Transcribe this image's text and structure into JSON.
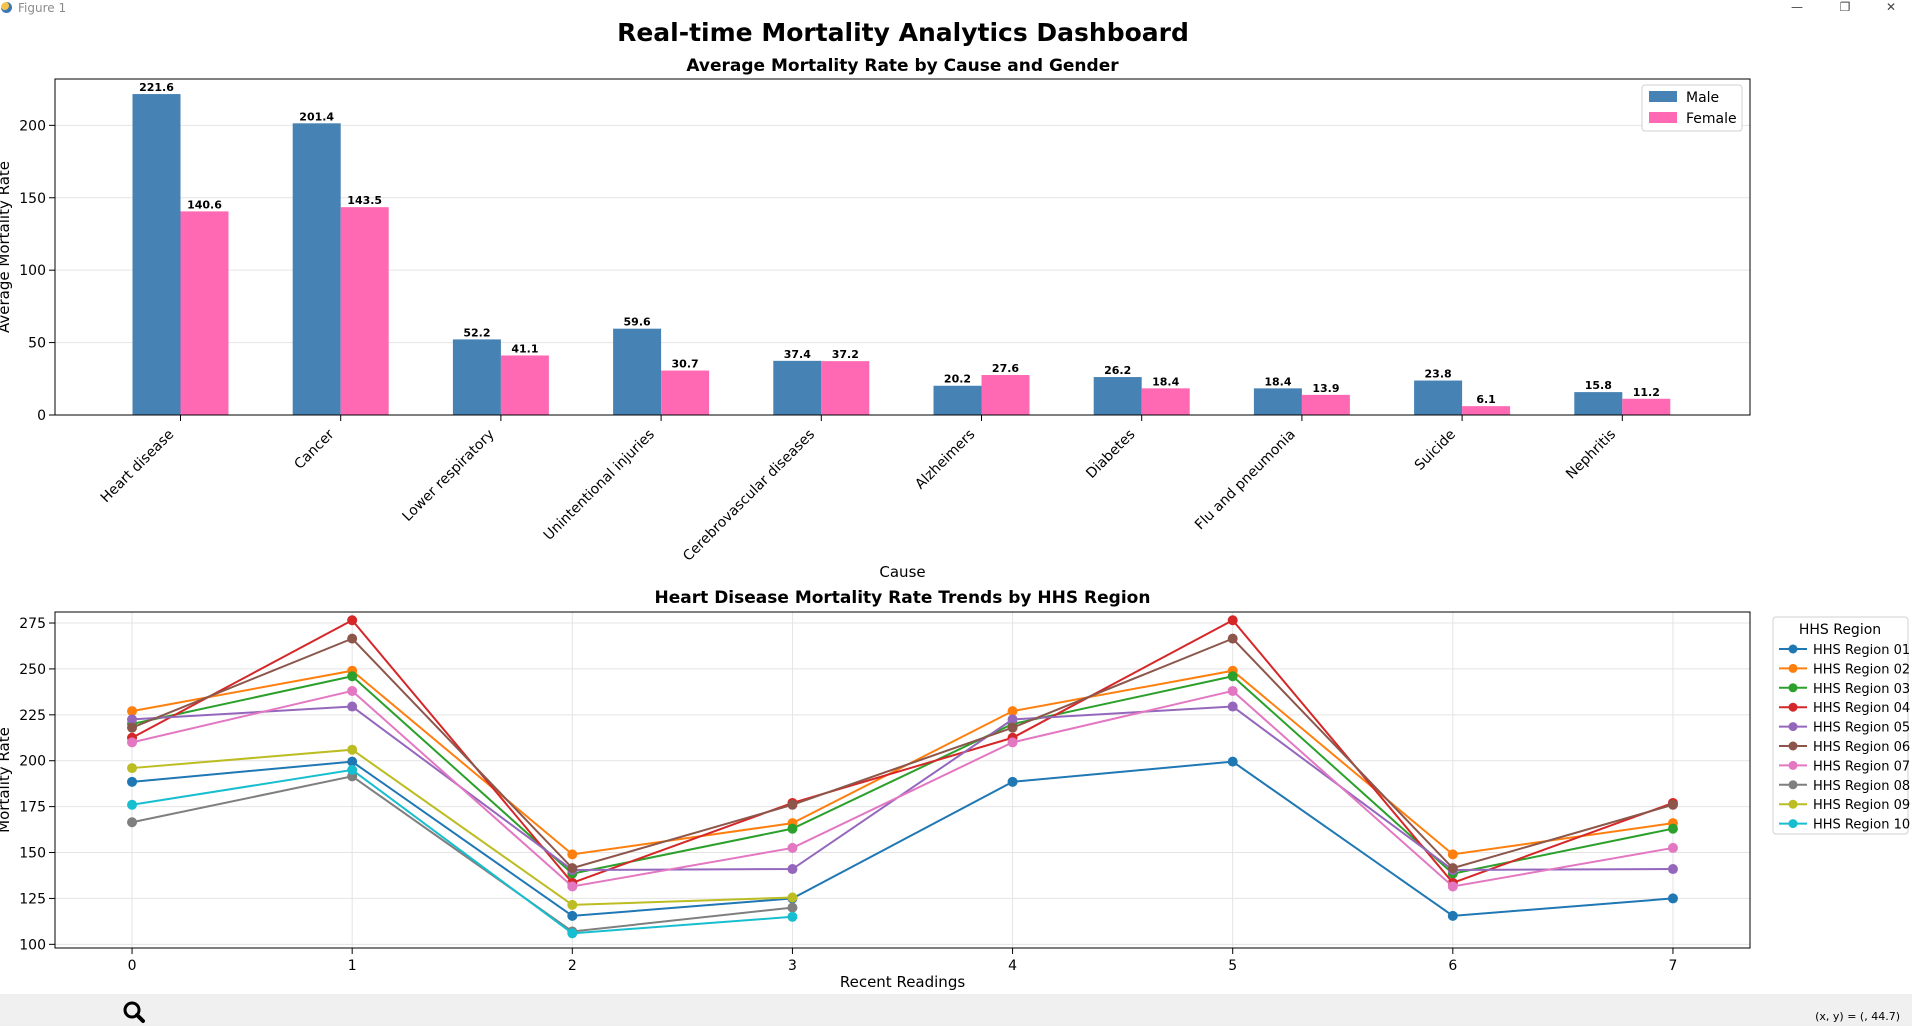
{
  "window": {
    "title": "Figure 1",
    "minimize_label": "—",
    "maximize_label": "❐",
    "close_label": "✕"
  },
  "main_title": "Real-time Mortality Analytics Dashboard",
  "status": {
    "coords": "(x, y) = (, 44.7)"
  },
  "chart_data": [
    {
      "type": "bar",
      "title": "Average Mortality Rate by Cause and Gender",
      "xlabel": "Cause",
      "ylabel": "Average Mortality Rate",
      "ylim": [
        0,
        232
      ],
      "yticks": [
        0,
        50,
        100,
        150,
        200
      ],
      "grid": true,
      "legend_position": "top-right",
      "categories": [
        "Heart disease",
        "Cancer",
        "Lower respiratory",
        "Unintentional injuries",
        "Cerebrovascular diseases",
        "Alzheimers",
        "Diabetes",
        "Flu and pneumonia",
        "Suicide",
        "Nephritis"
      ],
      "series": [
        {
          "name": "Male",
          "color": "#4682b4",
          "values": [
            221.6,
            201.4,
            52.2,
            59.6,
            37.4,
            20.2,
            26.2,
            18.4,
            23.8,
            15.8
          ]
        },
        {
          "name": "Female",
          "color": "#ff69b4",
          "values": [
            140.6,
            143.5,
            41.1,
            30.7,
            37.2,
            27.6,
            18.4,
            13.9,
            6.1,
            11.2
          ]
        }
      ]
    },
    {
      "type": "line",
      "title": "Heart Disease Mortality Rate Trends by HHS Region",
      "xlabel": "Recent Readings",
      "ylabel": "Mortality Rate",
      "xlim": [
        -0.35,
        7.35
      ],
      "ylim": [
        98,
        281
      ],
      "xticks": [
        0,
        1,
        2,
        3,
        4,
        5,
        6,
        7
      ],
      "yticks": [
        100,
        125,
        150,
        175,
        200,
        225,
        250,
        275
      ],
      "grid": true,
      "legend_title": "HHS Region",
      "legend_position": "outside-right",
      "series": [
        {
          "name": "HHS Region 01",
          "color": "#1f77b4",
          "x": [
            0,
            1,
            2,
            3,
            4,
            5,
            6,
            7
          ],
          "y": [
            188.5,
            199.5,
            115.5,
            125,
            188.5,
            199.5,
            115.5,
            125
          ]
        },
        {
          "name": "HHS Region 02",
          "color": "#ff7f0e",
          "x": [
            0,
            1,
            2,
            3,
            4,
            5,
            6,
            7
          ],
          "y": [
            227,
            249,
            149,
            166,
            227,
            249,
            149,
            166
          ]
        },
        {
          "name": "HHS Region 03",
          "color": "#2ca02c",
          "x": [
            0,
            1,
            2,
            3,
            4,
            5,
            6,
            7
          ],
          "y": [
            220,
            246,
            138.5,
            163,
            220,
            246,
            138.5,
            163
          ]
        },
        {
          "name": "HHS Region 04",
          "color": "#d62728",
          "x": [
            0,
            1,
            2,
            3,
            4,
            5,
            6,
            7
          ],
          "y": [
            212.5,
            276.5,
            133.5,
            177,
            212.5,
            276.5,
            133.5,
            177
          ]
        },
        {
          "name": "HHS Region 05",
          "color": "#9467bd",
          "x": [
            0,
            1,
            2,
            3,
            4,
            5,
            6,
            7
          ],
          "y": [
            222.5,
            229.5,
            140.5,
            141,
            222.5,
            229.5,
            140.5,
            141
          ]
        },
        {
          "name": "HHS Region 06",
          "color": "#8c564b",
          "x": [
            0,
            1,
            2,
            3,
            4,
            5,
            6,
            7
          ],
          "y": [
            218,
            266.5,
            141.5,
            176,
            218,
            266.5,
            141.5,
            176
          ]
        },
        {
          "name": "HHS Region 07",
          "color": "#e377c2",
          "x": [
            0,
            1,
            2,
            3,
            4,
            5,
            6,
            7
          ],
          "y": [
            210,
            238,
            131.5,
            152.5,
            210,
            238,
            131.5,
            152.5
          ]
        },
        {
          "name": "HHS Region 08",
          "color": "#7f7f7f",
          "x": [
            0,
            1,
            2,
            3
          ],
          "y": [
            166.5,
            191.5,
            107,
            120
          ]
        },
        {
          "name": "HHS Region 09",
          "color": "#bcbd22",
          "x": [
            0,
            1,
            2,
            3
          ],
          "y": [
            196,
            206,
            121.5,
            125.5
          ]
        },
        {
          "name": "HHS Region 10",
          "color": "#17becf",
          "x": [
            0,
            1,
            2,
            3
          ],
          "y": [
            176,
            195,
            106,
            115
          ]
        }
      ]
    }
  ]
}
